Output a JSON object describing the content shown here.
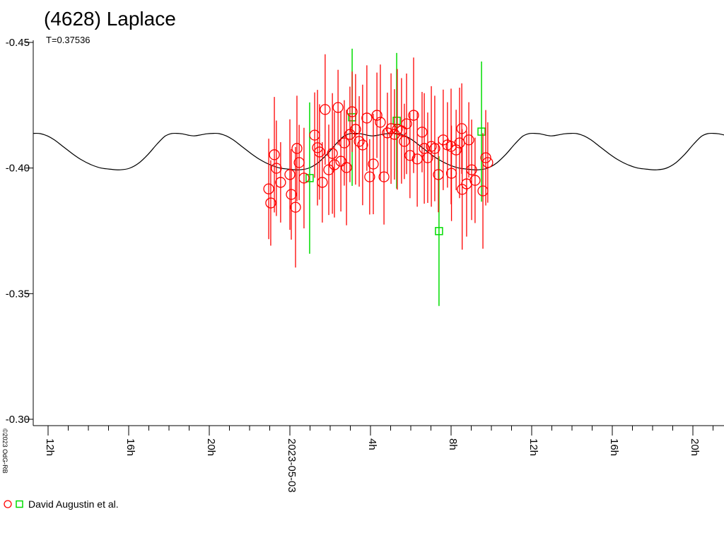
{
  "header": {
    "title": "(4628) Laplace",
    "subtitle": "T=0.37536"
  },
  "legend": {
    "label": "David Augustin et al."
  },
  "footer": {
    "copyright": "©2023 OdG-RB"
  },
  "colors": {
    "circles": "#ff0000",
    "squares": "#00dd00",
    "model": "#000000",
    "axis": "#000000"
  },
  "chart_data": {
    "type": "scatter",
    "title": "(4628) Laplace",
    "period_label": "T=0.37536",
    "period_days": 0.37536,
    "date_label": "2023-05-03",
    "xlabel": "",
    "ylabel": "",
    "grid": false,
    "legend_position": "bottom-left",
    "x_unit": "hours relative to 2023-05-03 00:00",
    "x_range_hours": [
      -12.74,
      21.54
    ],
    "y_range_mag": [
      -0.45,
      -0.2975
    ],
    "x_major_ticks": [
      {
        "t": -12,
        "label": "12h"
      },
      {
        "t": -8,
        "label": "16h"
      },
      {
        "t": -4,
        "label": "20h"
      },
      {
        "t": 0,
        "label": "2023-05-03"
      },
      {
        "t": 4,
        "label": "4h"
      },
      {
        "t": 8,
        "label": "8h"
      },
      {
        "t": 12,
        "label": "12h"
      },
      {
        "t": 16,
        "label": "16h"
      },
      {
        "t": 20,
        "label": "20h"
      }
    ],
    "x_minor_tick_every_hours": 1,
    "x_minor_tick_range": [
      -12,
      21
    ],
    "y_ticks": [
      {
        "mag": -0.45,
        "label": "-0.45"
      },
      {
        "mag": -0.4,
        "label": "-0.40"
      },
      {
        "mag": -0.35,
        "label": "-0.35"
      },
      {
        "mag": -0.3,
        "label": "-0.30"
      }
    ],
    "series": [
      {
        "name": "David Augustin et al.",
        "marker": "circle",
        "color": "#ff0000",
        "points": [
          [
            -1.05,
            -0.3917,
            0.02
          ],
          [
            -0.95,
            -0.3861,
            0.017
          ],
          [
            -0.77,
            -0.4053,
            0.023
          ],
          [
            -0.67,
            -0.3999,
            0.019
          ],
          [
            -0.46,
            -0.3943,
            0.016
          ],
          [
            0.0,
            -0.3974,
            0.022
          ],
          [
            0.07,
            -0.3895,
            0.018
          ],
          [
            0.28,
            -0.3844,
            0.024
          ],
          [
            0.35,
            -0.4078,
            0.021
          ],
          [
            0.46,
            -0.4022,
            0.015
          ],
          [
            0.7,
            -0.396,
            0.02
          ],
          [
            1.23,
            -0.4131,
            0.017
          ],
          [
            1.37,
            -0.4081,
            0.023
          ],
          [
            1.47,
            -0.4064,
            0.019
          ],
          [
            1.61,
            -0.3943,
            0.016
          ],
          [
            1.75,
            -0.4233,
            0.022
          ],
          [
            1.93,
            -0.3993,
            0.018
          ],
          [
            2.11,
            -0.4058,
            0.024
          ],
          [
            2.21,
            -0.4013,
            0.021
          ],
          [
            2.39,
            -0.4241,
            0.015
          ],
          [
            2.53,
            -0.4027,
            0.02
          ],
          [
            2.7,
            -0.41,
            0.017
          ],
          [
            2.81,
            -0.4002,
            0.023
          ],
          [
            2.98,
            -0.4134,
            0.019
          ],
          [
            3.09,
            -0.4224,
            0.016
          ],
          [
            3.26,
            -0.4154,
            0.022
          ],
          [
            3.44,
            -0.4106,
            0.018
          ],
          [
            3.61,
            -0.4092,
            0.024
          ],
          [
            3.82,
            -0.4199,
            0.021
          ],
          [
            3.96,
            -0.3965,
            0.015
          ],
          [
            4.14,
            -0.4016,
            0.02
          ],
          [
            4.32,
            -0.421,
            0.017
          ],
          [
            4.49,
            -0.4182,
            0.023
          ],
          [
            4.67,
            -0.3965,
            0.019
          ],
          [
            4.84,
            -0.414,
            0.016
          ],
          [
            5.02,
            -0.4157,
            0.022
          ],
          [
            5.19,
            -0.4134,
            0.018
          ],
          [
            5.33,
            -0.4154,
            0.024
          ],
          [
            5.54,
            -0.4148,
            0.021
          ],
          [
            5.68,
            -0.4106,
            0.015
          ],
          [
            5.79,
            -0.4176,
            0.02
          ],
          [
            5.96,
            -0.405,
            0.017
          ],
          [
            6.14,
            -0.421,
            0.023
          ],
          [
            6.32,
            -0.4036,
            0.019
          ],
          [
            6.56,
            -0.4143,
            0.016
          ],
          [
            6.67,
            -0.4078,
            0.022
          ],
          [
            6.84,
            -0.4041,
            0.018
          ],
          [
            7.02,
            -0.4086,
            0.024
          ],
          [
            7.19,
            -0.4078,
            0.021
          ],
          [
            7.37,
            -0.3974,
            0.015
          ],
          [
            7.61,
            -0.4112,
            0.02
          ],
          [
            7.82,
            -0.4092,
            0.017
          ],
          [
            8.0,
            -0.4086,
            0.023
          ],
          [
            8.02,
            -0.3979,
            0.019
          ],
          [
            8.25,
            -0.4072,
            0.016
          ],
          [
            8.42,
            -0.41,
            0.022
          ],
          [
            8.53,
            -0.4157,
            0.018
          ],
          [
            8.55,
            -0.3915,
            0.024
          ],
          [
            8.77,
            -0.3937,
            0.021
          ],
          [
            8.88,
            -0.4112,
            0.015
          ],
          [
            9.02,
            -0.3993,
            0.02
          ],
          [
            9.19,
            -0.3951,
            0.017
          ],
          [
            9.58,
            -0.3909,
            0.023
          ],
          [
            9.72,
            -0.4041,
            0.019
          ],
          [
            9.82,
            -0.4022,
            0.016
          ]
        ]
      },
      {
        "name": "David Augustin et al.",
        "marker": "square",
        "color": "#00dd00",
        "points": [
          [
            0.98,
            -0.396,
            0.0301
          ],
          [
            3.09,
            -0.4202,
            0.0273
          ],
          [
            5.3,
            -0.4188,
            0.027
          ],
          [
            7.4,
            -0.3749,
            0.0298
          ],
          [
            9.51,
            -0.4145,
            0.0279
          ]
        ]
      }
    ],
    "model_curve": {
      "color": "#000000",
      "period_hours": 8.877,
      "anchor_min_t_hours": -8.421,
      "phase_hours": [
        0.0,
        0.456,
        0.912,
        1.368,
        1.825,
        2.211,
        2.526,
        2.807,
        3.088,
        3.368,
        3.649,
        3.93,
        4.281,
        4.632,
        4.912,
        5.263,
        5.614,
        6.035,
        6.491,
        6.947,
        7.439,
        7.93,
        8.421,
        8.877
      ],
      "mag": [
        -0.3993,
        -0.3999,
        -0.4019,
        -0.4053,
        -0.4095,
        -0.4126,
        -0.4137,
        -0.4138,
        -0.4136,
        -0.4131,
        -0.4128,
        -0.4131,
        -0.4136,
        -0.4138,
        -0.4137,
        -0.4128,
        -0.4112,
        -0.4086,
        -0.4058,
        -0.4033,
        -0.4013,
        -0.4,
        -0.3995,
        -0.3993
      ]
    }
  }
}
